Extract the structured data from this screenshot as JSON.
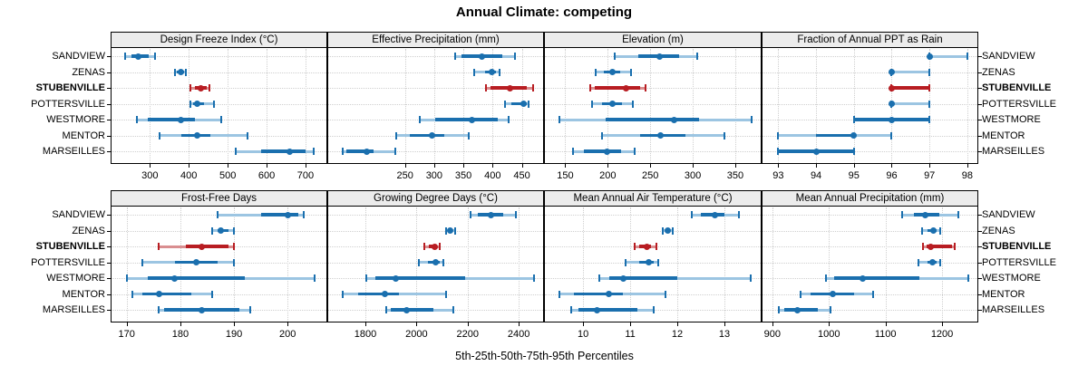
{
  "title": "Annual Climate: competing",
  "caption": "5th-25th-50th-75th-95th Percentiles",
  "percentiles_order": [
    "5th",
    "25th",
    "50th",
    "75th",
    "95th"
  ],
  "locations": [
    "SANDVIEW",
    "ZENAS",
    "STUBENVILLE",
    "POTTERSVILLE",
    "WESTMORE",
    "MENTOR",
    "MARSEILLES"
  ],
  "highlighted_location": "STUBENVILLE",
  "colors": {
    "series": "#1a6fae",
    "series_light": "#9cc5e2",
    "highlight": "#b81d22",
    "highlight_light": "#d98e90",
    "grid": "#cfcfcf",
    "strip_bg": "#ececec",
    "border": "#000000"
  },
  "chart_data": [
    {
      "type": "dotplot-percentiles",
      "title": "Design Freeze Index (°C)",
      "row": 0,
      "col": 0,
      "axis": {
        "min": 199,
        "max": 756,
        "ticks": [
          300,
          400,
          500,
          600,
          700
        ]
      },
      "series": [
        {
          "location": "SANDVIEW",
          "percentiles": [
            237,
            252,
            271,
            297,
            314
          ]
        },
        {
          "location": "ZENAS",
          "percentiles": [
            364,
            369,
            379,
            387,
            393
          ]
        },
        {
          "location": "STUBENVILLE",
          "percentiles": [
            405,
            415,
            430,
            445,
            453
          ]
        },
        {
          "location": "POTTERSVILLE",
          "percentiles": [
            404,
            410,
            421,
            439,
            465
          ]
        },
        {
          "location": "WESTMORE",
          "percentiles": [
            266,
            295,
            379,
            415,
            484
          ]
        },
        {
          "location": "MENTOR",
          "percentiles": [
            325,
            381,
            421,
            455,
            550
          ]
        },
        {
          "location": "MARSEILLES",
          "percentiles": [
            520,
            587,
            660,
            700,
            722
          ]
        }
      ]
    },
    {
      "type": "dotplot-percentiles",
      "title": "Effective Precipitation (mm)",
      "row": 0,
      "col": 1,
      "axis": {
        "min": 117,
        "max": 488,
        "ticks": [
          250,
          300,
          350,
          400,
          450
        ]
      },
      "series": [
        {
          "location": "SANDVIEW",
          "percentiles": [
            336,
            347,
            382,
            416,
            438
          ]
        },
        {
          "location": "ZENAS",
          "percentiles": [
            368,
            387,
            399,
            406,
            412
          ]
        },
        {
          "location": "STUBENVILLE",
          "percentiles": [
            388,
            396,
            430,
            458,
            470
          ]
        },
        {
          "location": "POTTERSVILLE",
          "percentiles": [
            422,
            432,
            453,
            458,
            462
          ]
        },
        {
          "location": "WESTMORE",
          "percentiles": [
            275,
            302,
            365,
            409,
            427
          ]
        },
        {
          "location": "MENTOR",
          "percentiles": [
            235,
            258,
            297,
            317,
            359
          ]
        },
        {
          "location": "MARSEILLES",
          "percentiles": [
            143,
            150,
            184,
            196,
            234
          ]
        }
      ]
    },
    {
      "type": "dotplot-percentiles",
      "title": "Elevation (m)",
      "row": 0,
      "col": 2,
      "axis": {
        "min": 125,
        "max": 381,
        "ticks": [
          150,
          200,
          250,
          300,
          350
        ]
      },
      "series": [
        {
          "location": "SANDVIEW",
          "percentiles": [
            208,
            236,
            261,
            284,
            305
          ]
        },
        {
          "location": "ZENAS",
          "percentiles": [
            186,
            195,
            206,
            215,
            227
          ]
        },
        {
          "location": "STUBENVILLE",
          "percentiles": [
            179,
            185,
            221,
            238,
            244
          ]
        },
        {
          "location": "POTTERSVILLE",
          "percentiles": [
            182,
            193,
            206,
            217,
            229
          ]
        },
        {
          "location": "WESTMORE",
          "percentiles": [
            143,
            197,
            278,
            307,
            369
          ]
        },
        {
          "location": "MENTOR",
          "percentiles": [
            193,
            238,
            262,
            291,
            337
          ]
        },
        {
          "location": "MARSEILLES",
          "percentiles": [
            159,
            172,
            199,
            216,
            232
          ]
        }
      ]
    },
    {
      "type": "dotplot-percentiles",
      "title": "Fraction of Annual PPT as Rain",
      "row": 0,
      "col": 3,
      "axis": {
        "min": 92.56,
        "max": 98.29,
        "ticks": [
          93,
          94,
          95,
          96,
          97,
          98
        ]
      },
      "series": [
        {
          "location": "SANDVIEW",
          "percentiles": [
            97,
            97,
            97,
            97,
            98
          ]
        },
        {
          "location": "ZENAS",
          "percentiles": [
            96,
            96,
            96,
            96,
            97
          ]
        },
        {
          "location": "STUBENVILLE",
          "percentiles": [
            96,
            96,
            96,
            97,
            97
          ]
        },
        {
          "location": "POTTERSVILLE",
          "percentiles": [
            96,
            96,
            96,
            96,
            97
          ]
        },
        {
          "location": "WESTMORE",
          "percentiles": [
            95,
            95,
            96,
            97,
            97
          ]
        },
        {
          "location": "MENTOR",
          "percentiles": [
            93,
            94,
            95,
            95,
            96
          ]
        },
        {
          "location": "MARSEILLES",
          "percentiles": [
            93,
            93,
            94,
            95,
            95
          ]
        }
      ]
    },
    {
      "type": "dotplot-percentiles",
      "title": "Frost-Free Days",
      "row": 1,
      "col": 0,
      "axis": {
        "min": 167,
        "max": 207.4,
        "ticks": [
          170,
          180,
          190,
          200
        ]
      },
      "series": [
        {
          "location": "SANDVIEW",
          "percentiles": [
            187,
            195,
            200,
            202,
            203
          ]
        },
        {
          "location": "ZENAS",
          "percentiles": [
            186,
            187,
            187.5,
            189,
            190
          ]
        },
        {
          "location": "STUBENVILLE",
          "percentiles": [
            176,
            181,
            184,
            189,
            190
          ]
        },
        {
          "location": "POTTERSVILLE",
          "percentiles": [
            173,
            179,
            183,
            187,
            190
          ]
        },
        {
          "location": "WESTMORE",
          "percentiles": [
            170,
            174,
            179,
            192,
            205
          ]
        },
        {
          "location": "MENTOR",
          "percentiles": [
            171,
            173,
            176,
            182,
            186
          ]
        },
        {
          "location": "MARSEILLES",
          "percentiles": [
            176,
            177,
            184,
            191,
            193
          ]
        }
      ]
    },
    {
      "type": "dotplot-percentiles",
      "title": "Growing Degree Days (°C)",
      "row": 1,
      "col": 1,
      "axis": {
        "min": 1651,
        "max": 2499,
        "ticks": [
          1800,
          2000,
          2200,
          2400
        ]
      },
      "series": [
        {
          "location": "SANDVIEW",
          "percentiles": [
            2210,
            2240,
            2290,
            2340,
            2390
          ]
        },
        {
          "location": "ZENAS",
          "percentiles": [
            2115,
            2125,
            2130,
            2140,
            2150
          ]
        },
        {
          "location": "STUBENVILLE",
          "percentiles": [
            2030,
            2050,
            2070,
            2080,
            2090
          ]
        },
        {
          "location": "POTTERSVILLE",
          "percentiles": [
            2010,
            2045,
            2075,
            2090,
            2105
          ]
        },
        {
          "location": "WESTMORE",
          "percentiles": [
            1805,
            1840,
            1920,
            2190,
            2460
          ]
        },
        {
          "location": "MENTOR",
          "percentiles": [
            1710,
            1770,
            1875,
            1930,
            2115
          ]
        },
        {
          "location": "MARSEILLES",
          "percentiles": [
            1880,
            1900,
            1960,
            2065,
            2145
          ]
        }
      ]
    },
    {
      "type": "dotplot-percentiles",
      "title": "Mean Annual Air Temperature (°C)",
      "row": 1,
      "col": 2,
      "axis": {
        "min": 9.17,
        "max": 13.79,
        "ticks": [
          10,
          11,
          12,
          13
        ]
      },
      "series": [
        {
          "location": "SANDVIEW",
          "percentiles": [
            12.3,
            12.5,
            12.8,
            13.0,
            13.3
          ]
        },
        {
          "location": "ZENAS",
          "percentiles": [
            11.7,
            11.75,
            11.8,
            11.85,
            11.9
          ]
        },
        {
          "location": "STUBENVILLE",
          "percentiles": [
            11.1,
            11.2,
            11.35,
            11.45,
            11.55
          ]
        },
        {
          "location": "POTTERSVILLE",
          "percentiles": [
            10.9,
            11.2,
            11.4,
            11.5,
            11.6
          ]
        },
        {
          "location": "WESTMORE",
          "percentiles": [
            10.35,
            10.55,
            10.85,
            12.0,
            13.55
          ]
        },
        {
          "location": "MENTOR",
          "percentiles": [
            9.5,
            9.8,
            10.55,
            10.85,
            11.75
          ]
        },
        {
          "location": "MARSEILLES",
          "percentiles": [
            9.75,
            9.9,
            10.3,
            11.15,
            11.5
          ]
        }
      ]
    },
    {
      "type": "dotplot-percentiles",
      "title": "Mean Annual Precipitation (mm)",
      "row": 1,
      "col": 3,
      "axis": {
        "min": 881,
        "max": 1264,
        "ticks": [
          900,
          1000,
          1100,
          1200
        ]
      },
      "series": [
        {
          "location": "SANDVIEW",
          "percentiles": [
            1130,
            1150,
            1170,
            1195,
            1228
          ]
        },
        {
          "location": "ZENAS",
          "percentiles": [
            1165,
            1175,
            1185,
            1190,
            1196
          ]
        },
        {
          "location": "STUBENVILLE",
          "percentiles": [
            1166,
            1172,
            1180,
            1218,
            1223
          ]
        },
        {
          "location": "POTTERSVILLE",
          "percentiles": [
            1159,
            1175,
            1183,
            1190,
            1197
          ]
        },
        {
          "location": "WESTMORE",
          "percentiles": [
            995,
            1010,
            1060,
            1160,
            1247
          ]
        },
        {
          "location": "MENTOR",
          "percentiles": [
            950,
            967,
            1007,
            1044,
            1078
          ]
        },
        {
          "location": "MARSEILLES",
          "percentiles": [
            911,
            921,
            945,
            980,
            1003
          ]
        }
      ]
    }
  ]
}
